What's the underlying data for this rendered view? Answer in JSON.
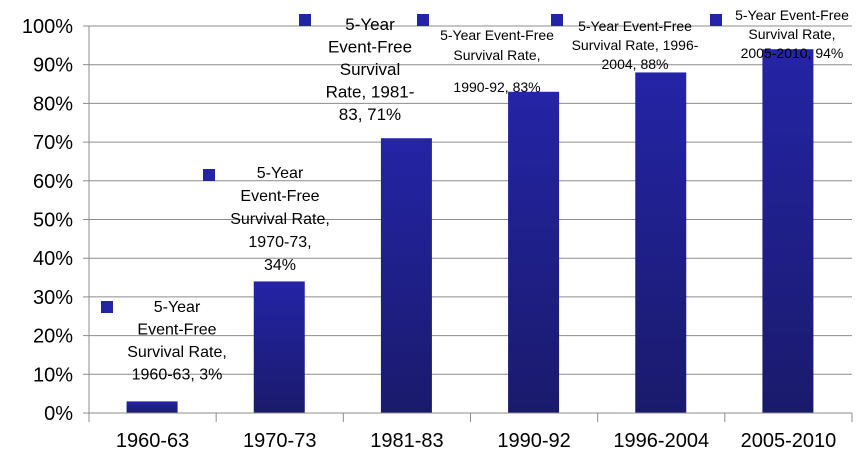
{
  "chart_data": {
    "type": "bar",
    "title": "",
    "xlabel": "",
    "ylabel": "",
    "categories": [
      "1960-63",
      "1970-73",
      "1981-83",
      "1990-92",
      "1996-2004",
      "2005-2010"
    ],
    "values": [
      3,
      34,
      71,
      83,
      88,
      94
    ],
    "ylim": [
      0,
      100
    ],
    "yticks": [
      "0%",
      "10%",
      "20%",
      "30%",
      "40%",
      "50%",
      "60%",
      "70%",
      "80%",
      "90%",
      "100%"
    ],
    "grid": true,
    "bar_color_top": "#2424a6",
    "bar_color_bottom": "#1a1a6c",
    "data_labels": [
      {
        "lines": [
          "5-Year",
          "Event-Free",
          "Survival Rate,",
          "1960-63, 3%"
        ]
      },
      {
        "lines": [
          "5-Year",
          "Event-Free",
          "Survival Rate,",
          "1970-73,",
          "34%"
        ]
      },
      {
        "lines": [
          "5-Year",
          "Event-Free",
          "Survival",
          "Rate, 1981-",
          "83, 71%"
        ]
      },
      {
        "lines": [
          "5-Year Event-Free",
          "Survival Rate,",
          "1990-92,    83%"
        ]
      },
      {
        "lines": [
          "5-Year Event-Free",
          "Survival Rate, 1996-",
          "2004, 88%"
        ]
      },
      {
        "lines": [
          "5-Year Event-Free",
          "Survival Rate,",
          "2005-2010, 94%"
        ]
      }
    ]
  }
}
